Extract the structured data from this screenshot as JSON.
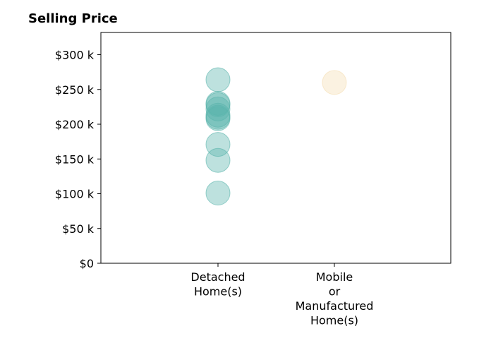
{
  "chart_data": {
    "type": "scatter",
    "title": "Selling Price",
    "xlabel": "",
    "ylabel": "",
    "categories": [
      [
        "Detached",
        "Home(s)"
      ],
      [
        "Mobile",
        "or",
        "Manufactured",
        "Home(s)"
      ]
    ],
    "y_ticks": [
      "$0",
      "$50 k",
      "$100 k",
      "$150 k",
      "$200 k",
      "$250 k",
      "$300 k"
    ],
    "y_tick_values": [
      0,
      50000,
      100000,
      150000,
      200000,
      250000,
      300000
    ],
    "ylim": [
      0,
      332000
    ],
    "series": [
      {
        "category_index": 0,
        "color": "#5ab4ac",
        "values": [
          264000,
          230000,
          228000,
          222000,
          213000,
          210000,
          208000,
          171000,
          148000,
          101000
        ]
      },
      {
        "category_index": 1,
        "color": "#f5deb3",
        "values": [
          260000
        ]
      }
    ],
    "grid": false,
    "legend": "none"
  }
}
